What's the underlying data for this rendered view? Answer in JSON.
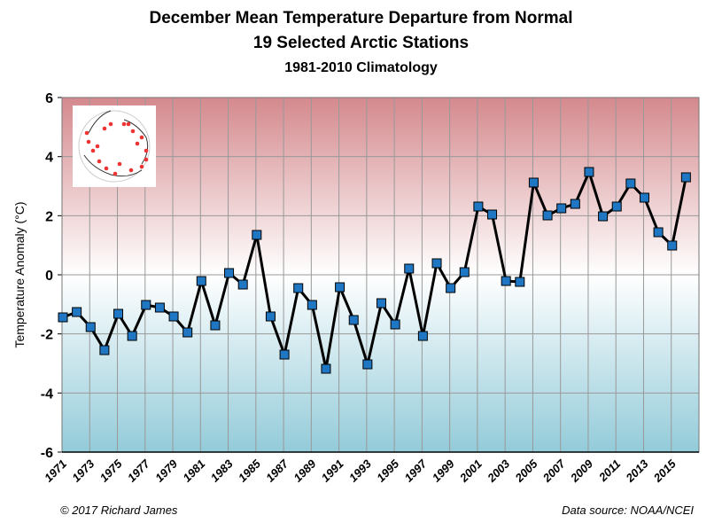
{
  "chart_data": {
    "type": "line",
    "title": "December Mean Temperature Departure from Normal",
    "subtitle": "19 Selected Arctic Stations",
    "subtitle2": "1981-2010 Climatology",
    "ylabel": "Temperature Anomaly (°C)",
    "xlabel": "",
    "ylim": [
      -6,
      6
    ],
    "yticks": [
      "-6",
      "-4",
      "-2",
      "0",
      "2",
      "4",
      "6"
    ],
    "xticks": [
      "1971",
      "1973",
      "1975",
      "1977",
      "1979",
      "1981",
      "1983",
      "1985",
      "1987",
      "1989",
      "1991",
      "1993",
      "1995",
      "1997",
      "1999",
      "2001",
      "2003",
      "2005",
      "2007",
      "2009",
      "2011",
      "2013",
      "2015"
    ],
    "grid": true,
    "background": "gradient red (warm) to blue (cold)",
    "x": [
      1971,
      1972,
      1973,
      1974,
      1975,
      1976,
      1977,
      1978,
      1979,
      1980,
      1981,
      1982,
      1983,
      1984,
      1985,
      1986,
      1987,
      1988,
      1989,
      1990,
      1991,
      1992,
      1993,
      1994,
      1995,
      1996,
      1997,
      1998,
      1999,
      2000,
      2001,
      2002,
      2003,
      2004,
      2005,
      2006,
      2007,
      2008,
      2009,
      2010,
      2011,
      2012,
      2013,
      2014,
      2015,
      2016
    ],
    "values": [
      -1.44,
      -1.26,
      -1.77,
      -2.55,
      -1.32,
      -2.07,
      -1.02,
      -1.11,
      -1.41,
      -1.95,
      -0.21,
      -1.71,
      0.06,
      -0.33,
      1.35,
      -1.41,
      -2.7,
      -0.45,
      -1.02,
      -3.18,
      -0.42,
      -1.53,
      -3.03,
      -0.96,
      -1.68,
      0.21,
      -2.07,
      0.39,
      -0.45,
      0.09,
      2.31,
      2.04,
      -0.21,
      -0.24,
      3.12,
      2.01,
      2.25,
      2.4,
      3.48,
      1.98,
      2.31,
      3.09,
      2.61,
      1.44,
      0.99,
      3.3
    ],
    "colors": {
      "line": "#000000",
      "marker": "#1f77c4",
      "top": "#d4898d",
      "bottom": "#93cbd9"
    }
  },
  "footer": {
    "copyright": "© 2017 Richard James",
    "source": "Data source: NOAA/NCEI"
  }
}
